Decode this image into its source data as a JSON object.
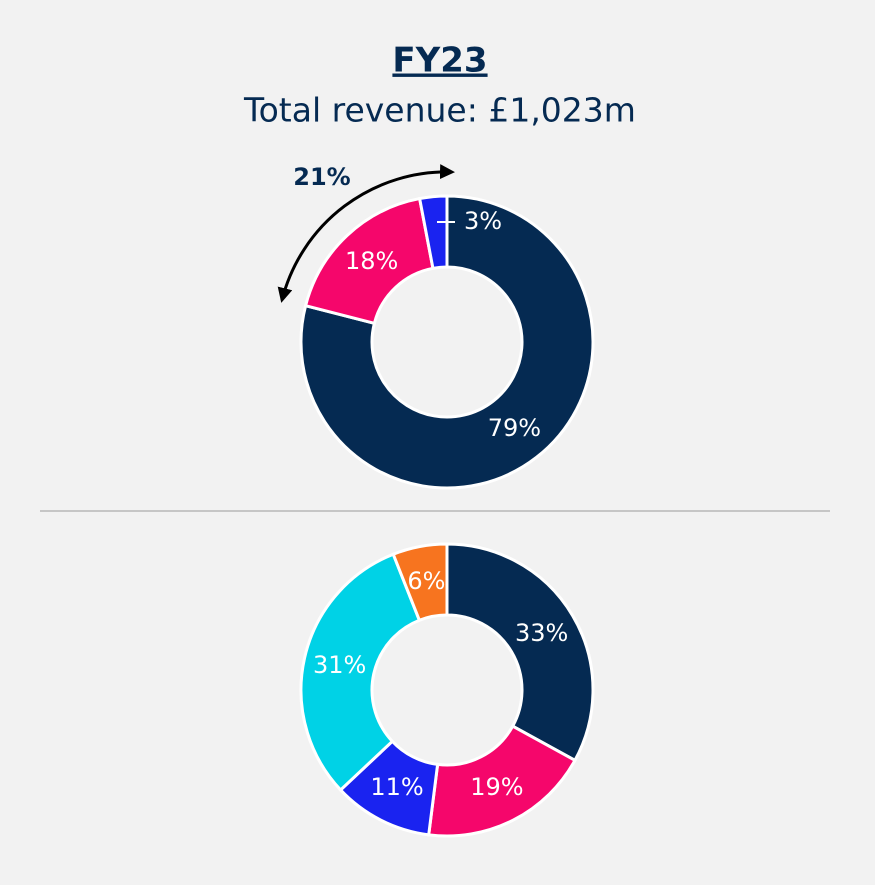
{
  "chart_data": [
    {
      "type": "donut",
      "title": "FY23",
      "subtitle": "Total revenue: £1,023m",
      "annotation": "21%",
      "values": [
        79,
        18,
        3
      ],
      "value_labels": [
        "79%",
        "18%",
        "3%"
      ],
      "colors": [
        "#052a52",
        "#f5066b",
        "#1a23f0"
      ]
    },
    {
      "type": "donut",
      "values": [
        33,
        19,
        11,
        31,
        6
      ],
      "value_labels": [
        "33%",
        "19%",
        "11%",
        "31%",
        "6%"
      ],
      "colors": [
        "#052a52",
        "#f5066b",
        "#1a23f0",
        "#00d2e6",
        "#f7741f"
      ]
    }
  ]
}
